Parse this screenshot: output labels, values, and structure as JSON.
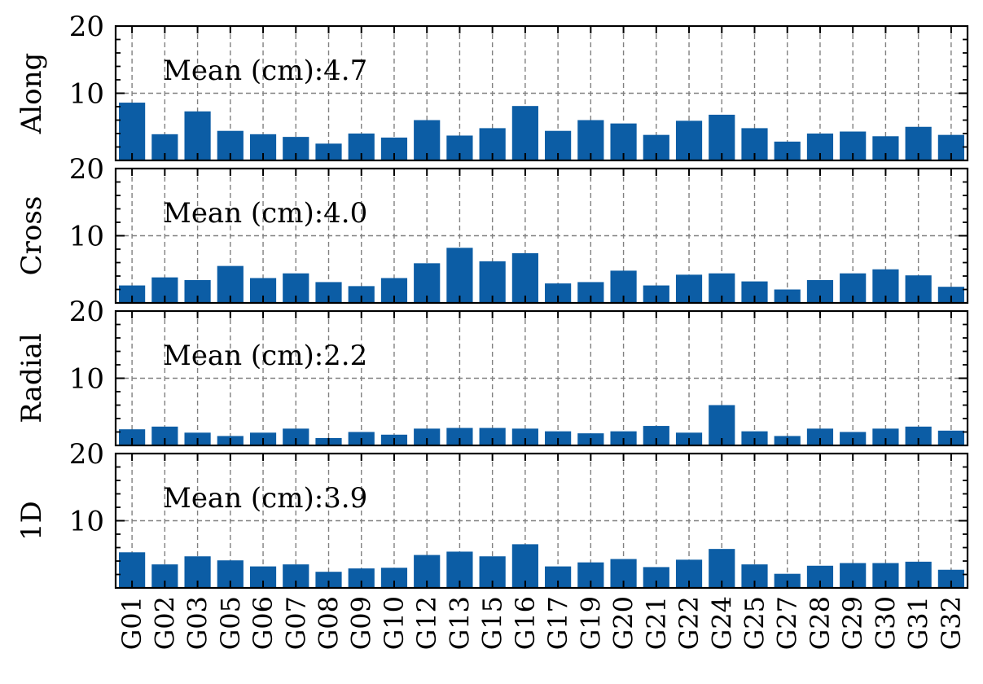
{
  "chart_data": {
    "type": "bar",
    "categories": [
      "G01",
      "G02",
      "G03",
      "G05",
      "G06",
      "G07",
      "G08",
      "G09",
      "G10",
      "G12",
      "G13",
      "G15",
      "G16",
      "G17",
      "G19",
      "G20",
      "G21",
      "G22",
      "G24",
      "G25",
      "G27",
      "G28",
      "G29",
      "G30",
      "G31",
      "G32"
    ],
    "ylim": [
      0,
      20
    ],
    "yticks": [
      10,
      20
    ],
    "grid": true,
    "bar_color": "#0c5da5",
    "panels": [
      {
        "ylabel": "Along",
        "annotation": "Mean (cm):4.7",
        "values": [
          8.6,
          3.9,
          7.3,
          4.4,
          3.9,
          3.5,
          2.5,
          4.0,
          3.4,
          6.0,
          3.7,
          4.8,
          8.1,
          4.4,
          6.0,
          5.5,
          3.8,
          5.9,
          6.8,
          4.8,
          2.8,
          4.0,
          4.3,
          3.6,
          5.0,
          3.8
        ]
      },
      {
        "ylabel": "Cross",
        "annotation": "Mean (cm):4.0",
        "values": [
          2.6,
          3.8,
          3.4,
          5.5,
          3.7,
          4.4,
          3.1,
          2.5,
          3.7,
          5.9,
          8.2,
          6.2,
          7.4,
          2.9,
          3.1,
          4.8,
          2.6,
          4.2,
          4.4,
          3.2,
          2.0,
          3.4,
          4.4,
          5.0,
          4.1,
          2.4
        ]
      },
      {
        "ylabel": "Radial",
        "annotation": "Mean (cm):2.2",
        "values": [
          2.4,
          2.8,
          1.9,
          1.4,
          1.9,
          2.5,
          1.1,
          2.0,
          1.6,
          2.5,
          2.6,
          2.6,
          2.5,
          2.1,
          1.8,
          2.1,
          2.9,
          1.9,
          6.0,
          2.1,
          1.4,
          2.5,
          2.0,
          2.5,
          2.8,
          2.2
        ]
      },
      {
        "ylabel": "1D",
        "annotation": "Mean (cm):3.9",
        "values": [
          5.3,
          3.5,
          4.7,
          4.1,
          3.2,
          3.5,
          2.4,
          2.9,
          3.0,
          4.9,
          5.4,
          4.7,
          6.5,
          3.2,
          3.8,
          4.3,
          3.1,
          4.2,
          5.8,
          3.5,
          2.1,
          3.3,
          3.7,
          3.7,
          3.9,
          2.7
        ]
      }
    ]
  }
}
